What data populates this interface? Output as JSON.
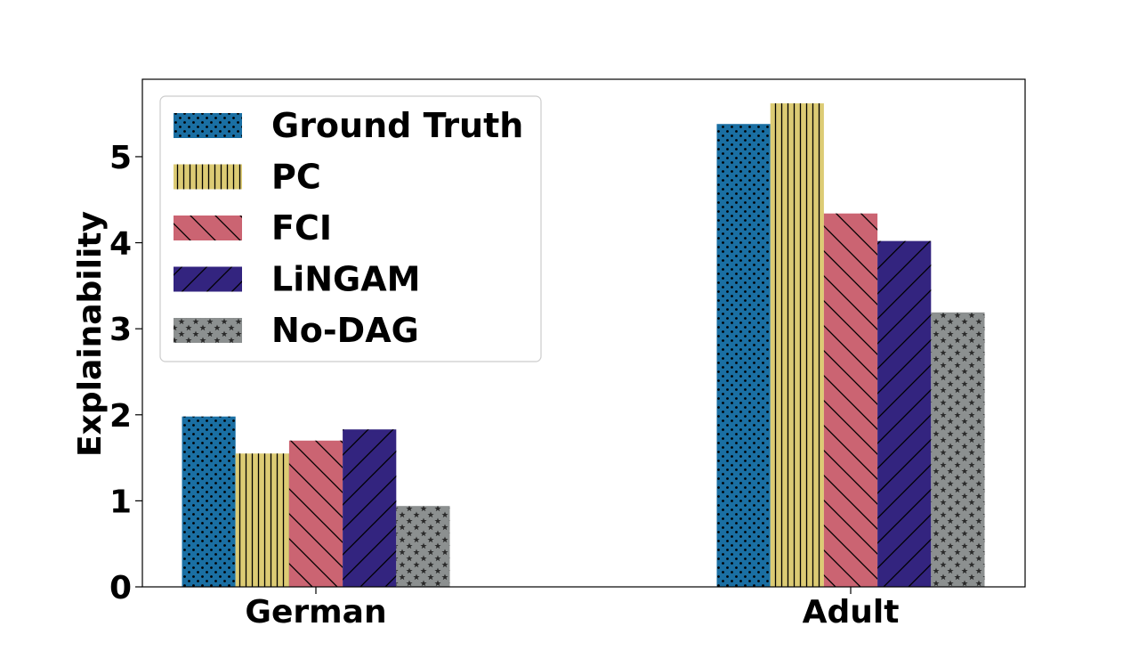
{
  "chart_data": {
    "type": "bar",
    "categories": [
      "German",
      "Adult"
    ],
    "ylabel": "Explainability",
    "xlabel": "",
    "ylim": [
      0,
      5.9
    ],
    "yticks": [
      0,
      1,
      2,
      3,
      4,
      5
    ],
    "grid": false,
    "legend_position": "top-left",
    "series": [
      {
        "name": "Ground Truth",
        "values": [
          1.98,
          5.38
        ],
        "color": "#1a6fa3",
        "hatch": "dots"
      },
      {
        "name": "PC",
        "values": [
          1.55,
          5.62
        ],
        "color": "#dccb74",
        "hatch": "vertical"
      },
      {
        "name": "FCI",
        "values": [
          1.7,
          4.34
        ],
        "color": "#cb6472",
        "hatch": "backslash"
      },
      {
        "name": "LiNGAM",
        "values": [
          1.83,
          4.02
        ],
        "color": "#33247f",
        "hatch": "slash"
      },
      {
        "name": "No-DAG",
        "values": [
          0.94,
          3.19
        ],
        "color": "#8c9090",
        "hatch": "stars"
      }
    ]
  }
}
